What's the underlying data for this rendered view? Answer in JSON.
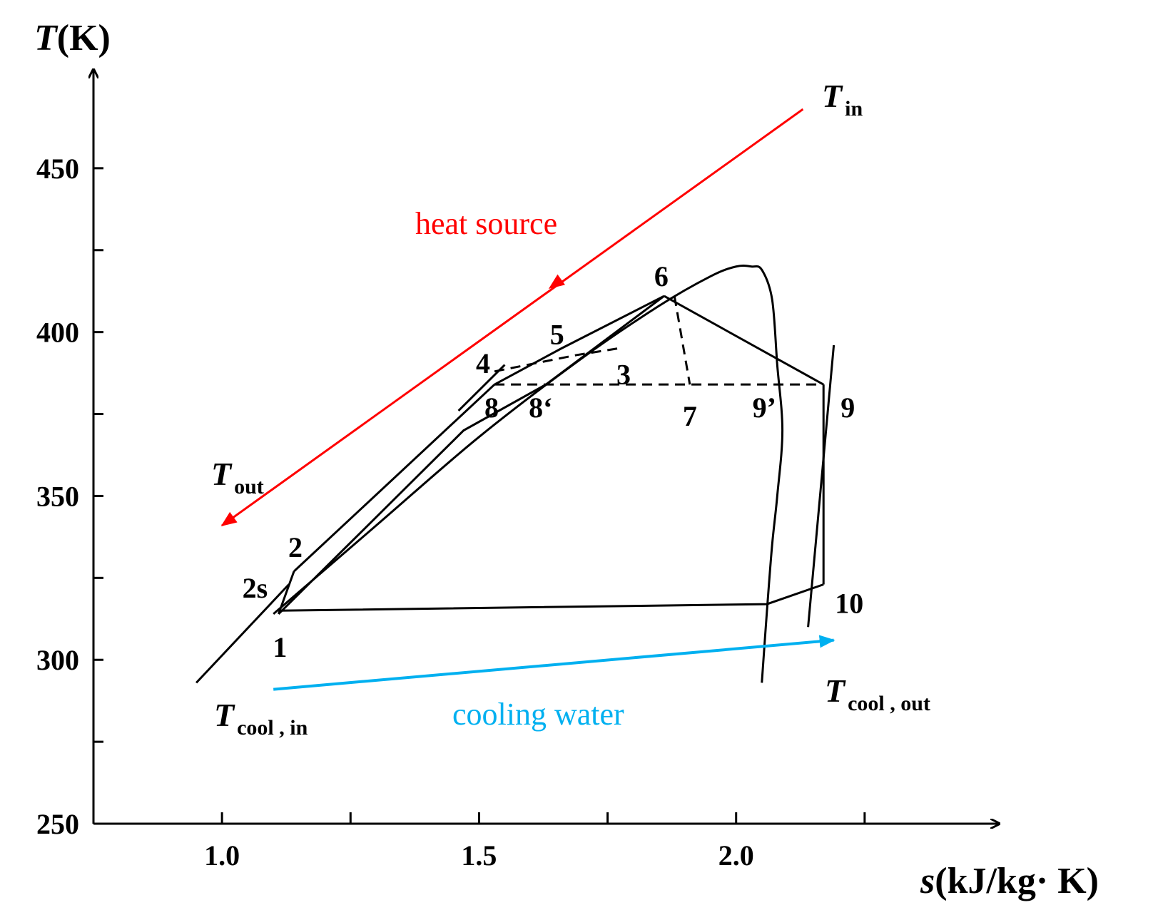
{
  "chart_data": {
    "type": "line",
    "title": "",
    "xlabel": {
      "symbol": "s",
      "unit": "(kJ/kg· K)"
    },
    "ylabel": {
      "symbol": "T",
      "unit": "(K)"
    },
    "xlim": [
      0.75,
      2.5
    ],
    "ylim": [
      250,
      480
    ],
    "x_ticks": [
      1.0,
      1.5,
      2.0
    ],
    "x_tick_labels": [
      "1.0",
      "1.5",
      "2.0"
    ],
    "x_minor_ticks": [
      1.25,
      1.75,
      2.25
    ],
    "y_ticks": [
      250,
      300,
      350,
      400,
      450
    ],
    "y_tick_labels": [
      "250",
      "300",
      "350",
      "400",
      "450"
    ],
    "y_minor_ticks": [
      275,
      325,
      375,
      425
    ],
    "grid": false,
    "saturation_dome": {
      "name": "saturation dome",
      "x": [
        1.1,
        1.3,
        1.5,
        1.7,
        1.85,
        1.95,
        2.0,
        2.03,
        2.05,
        2.07,
        2.08,
        2.09,
        2.08,
        2.07,
        2.06,
        2.05
      ],
      "y": [
        314,
        341,
        368,
        392,
        408,
        417,
        420,
        420,
        419,
        410,
        390,
        370,
        350,
        335,
        315,
        293
      ]
    },
    "cycle_points": [
      {
        "label": "1",
        "s": 1.11,
        "T": 314
      },
      {
        "label": "2s",
        "s": 1.12,
        "T": 322
      },
      {
        "label": "2",
        "s": 1.14,
        "T": 327
      },
      {
        "label": "3",
        "s": 1.77,
        "T": 395
      },
      {
        "label": "4",
        "s": 1.53,
        "T": 388
      },
      {
        "label": "5",
        "s": 1.66,
        "T": 395
      },
      {
        "label": "6",
        "s": 1.86,
        "T": 411
      },
      {
        "label": "7",
        "s": 1.91,
        "T": 384
      },
      {
        "label": "8",
        "s": 1.53,
        "T": 384
      },
      {
        "label": "8‘",
        "s": 1.63,
        "T": 384
      },
      {
        "label": "9’",
        "s": 2.09,
        "T": 384
      },
      {
        "label": "9",
        "s": 2.17,
        "T": 384
      },
      {
        "label": "10",
        "s": 2.17,
        "T": 323
      }
    ],
    "solid_paths": [
      {
        "name": "pump 1-2",
        "s": [
          1.11,
          1.14
        ],
        "T": [
          314,
          327
        ]
      },
      {
        "name": "preheating 2-8",
        "s": [
          1.14,
          1.53
        ],
        "T": [
          327,
          384
        ]
      },
      {
        "name": "evaporation 8-6",
        "s": [
          1.53,
          1.66,
          1.86
        ],
        "T": [
          384,
          395,
          411
        ]
      },
      {
        "name": "ideal heating line",
        "s": [
          1.11,
          1.47,
          1.63,
          1.86
        ],
        "T": [
          314,
          370,
          384,
          411
        ]
      },
      {
        "name": "turbine 6-9",
        "s": [
          1.86,
          2.17
        ],
        "T": [
          411,
          384
        ]
      },
      {
        "name": "desuperheat 9-10",
        "s": [
          2.17,
          2.17
        ],
        "T": [
          384,
          323
        ]
      },
      {
        "name": "condensation 10-1",
        "s": [
          2.17,
          2.06,
          1.11
        ],
        "T": [
          323,
          317,
          315
        ]
      },
      {
        "name": "isobar at 9-10 region",
        "s": [
          2.14,
          2.19
        ],
        "T": [
          310,
          396
        ]
      },
      {
        "name": "isobar through 1",
        "s": [
          0.95,
          1.13
        ],
        "T": [
          293,
          323
        ]
      },
      {
        "name": "isobar through 8",
        "s": [
          1.46,
          1.55
        ],
        "T": [
          376,
          390
        ]
      }
    ],
    "dashed_paths": [
      {
        "name": "4-3 dashed",
        "s": [
          1.53,
          1.69,
          1.77
        ],
        "T": [
          388,
          393,
          395
        ]
      },
      {
        "name": "T=384 isotherm",
        "s": [
          1.53,
          2.17
        ],
        "T": [
          384,
          384
        ]
      },
      {
        "name": "6-7 dashed",
        "s": [
          1.88,
          1.91
        ],
        "T": [
          411,
          384
        ]
      }
    ],
    "heat_source": {
      "label": "heat source",
      "color": "#ff0000",
      "start": {
        "s": 2.13,
        "T": 468
      },
      "end": {
        "s": 1.0,
        "T": 341
      },
      "mid_arrow": {
        "s": 1.66,
        "T": 416
      },
      "inlet_label": {
        "symbol": "T",
        "sub": "in"
      },
      "outlet_label": {
        "symbol": "T",
        "sub": "out"
      }
    },
    "cooling_water": {
      "label": "cooling water",
      "color": "#00b0f0",
      "start": {
        "s": 1.1,
        "T": 291
      },
      "end": {
        "s": 2.19,
        "T": 306
      },
      "inlet_label": {
        "symbol": "T",
        "sub": "cool , in"
      },
      "outlet_label": {
        "symbol": "T",
        "sub": "cool , out"
      }
    }
  }
}
